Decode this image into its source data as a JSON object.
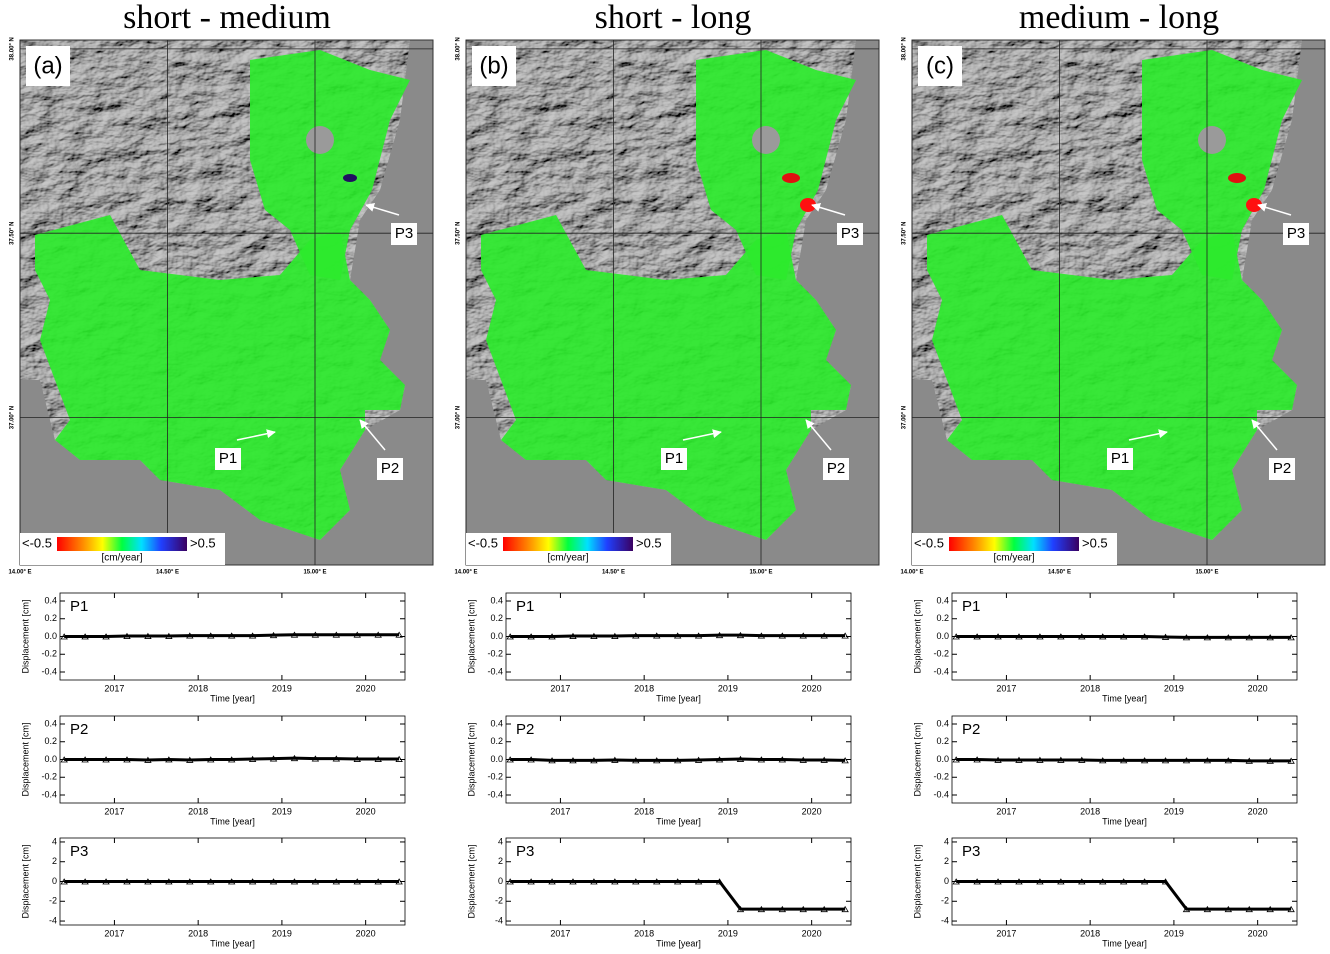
{
  "panels": [
    {
      "title": "short - medium",
      "label": "(a)",
      "colorbar": {
        "min_label": "<-0.5",
        "max_label": ">0.5",
        "unit": "[cm/year]"
      },
      "annotations": [
        "P1",
        "P2",
        "P3"
      ],
      "map": {
        "xlim": [
          14.0,
          15.4
        ],
        "ylim": [
          36.6,
          38.024
        ],
        "xticks": [
          {
            "value": 14.0,
            "label": "14.00° E"
          },
          {
            "value": 14.5,
            "label": "14.50° E"
          },
          {
            "value": 15.0,
            "label": "15.00° E"
          }
        ],
        "yticks": [
          {
            "value": 38.0,
            "label": "38.00° N"
          },
          {
            "value": 37.5,
            "label": "37.50° N"
          },
          {
            "value": 37.0,
            "label": "37.00° N"
          }
        ]
      },
      "charts": [
        {
          "type": "scatter",
          "label": "P1",
          "ylabel": "Displacement [cm]",
          "xlabel": "Time [year]",
          "color": "#000000",
          "x": [
            2016.4,
            2016.65,
            2016.9,
            2017.15,
            2017.4,
            2017.65,
            2017.9,
            2018.15,
            2018.4,
            2018.65,
            2018.9,
            2019.15,
            2019.4,
            2019.65,
            2019.9,
            2020.15,
            2020.4
          ],
          "values": [
            0,
            0,
            0,
            0.005,
            0.005,
            0.005,
            0.01,
            0.01,
            0.01,
            0.01,
            0.015,
            0.02,
            0.02,
            0.02,
            0.02,
            0.02,
            0.02
          ],
          "xlim": [
            2016.35,
            2020.47
          ],
          "ylim": [
            -0.49,
            0.49
          ],
          "xticks": [
            2017,
            2018,
            2019,
            2020
          ],
          "yticks": [
            0.4,
            0.2,
            {
              "value": 0,
              "label": "0.0"
            },
            -0.2,
            -0.4
          ]
        },
        {
          "type": "scatter",
          "label": "P2",
          "ylabel": "Displacement [cm]",
          "xlabel": "Time [year]",
          "color": "#000000",
          "x": [
            2016.4,
            2016.65,
            2016.9,
            2017.15,
            2017.4,
            2017.65,
            2017.9,
            2018.15,
            2018.4,
            2018.65,
            2018.9,
            2019.15,
            2019.4,
            2019.65,
            2019.9,
            2020.15,
            2020.4
          ],
          "values": [
            0,
            0,
            0,
            0,
            -0.005,
            0,
            -0.005,
            0,
            0,
            0.005,
            0.01,
            0.015,
            0.01,
            0.01,
            0.005,
            0.005,
            0.005
          ],
          "xlim": [
            2016.35,
            2020.47
          ],
          "ylim": [
            -0.49,
            0.49
          ],
          "xticks": [
            2017,
            2018,
            2019,
            2020
          ],
          "yticks": [
            0.4,
            0.2,
            {
              "value": 0,
              "label": "0.0"
            },
            -0.2,
            -0.4
          ]
        },
        {
          "type": "scatter",
          "label": "P3",
          "ylabel": "Displacement [cm]",
          "xlabel": "Time [year]",
          "color": "#000000",
          "x": [
            2016.4,
            2016.65,
            2016.9,
            2017.15,
            2017.4,
            2017.65,
            2017.9,
            2018.15,
            2018.4,
            2018.65,
            2018.9,
            2019.15,
            2019.4,
            2019.65,
            2019.9,
            2020.15,
            2020.4
          ],
          "values": [
            0,
            0,
            0,
            0,
            0,
            0,
            0,
            0,
            0,
            0,
            0,
            0,
            0,
            0,
            0,
            0,
            0
          ],
          "xlim": [
            2016.35,
            2020.47
          ],
          "ylim": [
            -4.4,
            4.4
          ],
          "xticks": [
            2017,
            2018,
            2019,
            2020
          ],
          "yticks": [
            4,
            2,
            0,
            -2,
            -4
          ]
        }
      ]
    },
    {
      "title": "short - long",
      "label": "(b)",
      "colorbar": {
        "min_label": "<-0.5",
        "max_label": ">0.5",
        "unit": "[cm/year]"
      },
      "annotations": [
        "P1",
        "P2",
        "P3"
      ],
      "map": {
        "xlim": [
          14.0,
          15.4
        ],
        "ylim": [
          36.6,
          38.024
        ],
        "xticks": [
          {
            "value": 14.0,
            "label": "14.00° E"
          },
          {
            "value": 14.5,
            "label": "14.50° E"
          },
          {
            "value": 15.0,
            "label": "15.00° E"
          }
        ],
        "yticks": [
          {
            "value": 38.0,
            "label": "38.00° N"
          },
          {
            "value": 37.5,
            "label": "37.50° N"
          },
          {
            "value": 37.0,
            "label": "37.00° N"
          }
        ]
      },
      "charts": [
        {
          "type": "scatter",
          "label": "P1",
          "ylabel": "Displacement [cm]",
          "xlabel": "Time [year]",
          "color": "#000000",
          "x": [
            2016.4,
            2016.65,
            2016.9,
            2017.15,
            2017.4,
            2017.65,
            2017.9,
            2018.15,
            2018.4,
            2018.65,
            2018.9,
            2019.15,
            2019.4,
            2019.65,
            2019.9,
            2020.15,
            2020.4
          ],
          "values": [
            0,
            0,
            0,
            0.005,
            0.005,
            0.005,
            0.01,
            0.01,
            0.01,
            0.01,
            0.015,
            0.015,
            0.01,
            0.01,
            0.01,
            0.01,
            0.01
          ],
          "xlim": [
            2016.35,
            2020.47
          ],
          "ylim": [
            -0.49,
            0.49
          ],
          "xticks": [
            2017,
            2018,
            2019,
            2020
          ],
          "yticks": [
            0.4,
            0.2,
            {
              "value": 0,
              "label": "0.0"
            },
            -0.2,
            -0.4
          ]
        },
        {
          "type": "scatter",
          "label": "P2",
          "ylabel": "Displacement [cm]",
          "xlabel": "Time [year]",
          "color": "#000000",
          "x": [
            2016.4,
            2016.65,
            2016.9,
            2017.15,
            2017.4,
            2017.65,
            2017.9,
            2018.15,
            2018.4,
            2018.65,
            2018.9,
            2019.15,
            2019.4,
            2019.65,
            2019.9,
            2020.15,
            2020.4
          ],
          "values": [
            0,
            0,
            -0.01,
            -0.01,
            -0.01,
            -0.005,
            -0.01,
            -0.01,
            -0.01,
            -0.005,
            0,
            0.005,
            0,
            0,
            -0.005,
            -0.005,
            -0.01
          ],
          "xlim": [
            2016.35,
            2020.47
          ],
          "ylim": [
            -0.49,
            0.49
          ],
          "xticks": [
            2017,
            2018,
            2019,
            2020
          ],
          "yticks": [
            0.4,
            0.2,
            {
              "value": 0,
              "label": "0.0"
            },
            -0.2,
            -0.4
          ]
        },
        {
          "type": "scatter",
          "label": "P3",
          "ylabel": "Displacement [cm]",
          "xlabel": "Time [year]",
          "color": "#000000",
          "x": [
            2016.4,
            2016.65,
            2016.9,
            2017.15,
            2017.4,
            2017.65,
            2017.9,
            2018.15,
            2018.4,
            2018.65,
            2018.9,
            2019.15,
            2019.4,
            2019.65,
            2019.9,
            2020.15,
            2020.4
          ],
          "values": [
            0,
            0,
            0,
            0,
            0,
            0,
            0,
            0,
            0,
            0,
            0,
            -2.8,
            -2.8,
            -2.8,
            -2.8,
            -2.8,
            -2.8
          ],
          "xlim": [
            2016.35,
            2020.47
          ],
          "ylim": [
            -4.4,
            4.4
          ],
          "xticks": [
            2017,
            2018,
            2019,
            2020
          ],
          "yticks": [
            4,
            2,
            0,
            -2,
            -4
          ]
        }
      ]
    },
    {
      "title": "medium - long",
      "label": "(c)",
      "colorbar": {
        "min_label": "<-0.5",
        "max_label": ">0.5",
        "unit": "[cm/year]"
      },
      "annotations": [
        "P1",
        "P2",
        "P3"
      ],
      "map": {
        "xlim": [
          14.0,
          15.4
        ],
        "ylim": [
          36.6,
          38.024
        ],
        "xticks": [
          {
            "value": 14.0,
            "label": "14.00° E"
          },
          {
            "value": 14.5,
            "label": "14.50° E"
          },
          {
            "value": 15.0,
            "label": "15.00° E"
          }
        ],
        "yticks": [
          {
            "value": 38.0,
            "label": "38.00° N"
          },
          {
            "value": 37.5,
            "label": "37.50° N"
          },
          {
            "value": 37.0,
            "label": "37.00° N"
          }
        ]
      },
      "charts": [
        {
          "type": "scatter",
          "label": "P1",
          "ylabel": "Displacement [cm]",
          "xlabel": "Time [year]",
          "color": "#000000",
          "x": [
            2016.4,
            2016.65,
            2016.9,
            2017.15,
            2017.4,
            2017.65,
            2017.9,
            2018.15,
            2018.4,
            2018.65,
            2018.9,
            2019.15,
            2019.4,
            2019.65,
            2019.9,
            2020.15,
            2020.4
          ],
          "values": [
            0,
            0,
            0,
            0,
            0,
            0,
            0,
            0,
            0,
            0,
            -0.005,
            -0.01,
            -0.01,
            -0.01,
            -0.01,
            -0.01,
            -0.01
          ],
          "xlim": [
            2016.35,
            2020.47
          ],
          "ylim": [
            -0.49,
            0.49
          ],
          "xticks": [
            2017,
            2018,
            2019,
            2020
          ],
          "yticks": [
            0.4,
            0.2,
            {
              "value": 0,
              "label": "0.0"
            },
            -0.2,
            -0.4
          ]
        },
        {
          "type": "scatter",
          "label": "P2",
          "ylabel": "Displacement [cm]",
          "xlabel": "Time [year]",
          "color": "#000000",
          "x": [
            2016.4,
            2016.65,
            2016.9,
            2017.15,
            2017.4,
            2017.65,
            2017.9,
            2018.15,
            2018.4,
            2018.65,
            2018.9,
            2019.15,
            2019.4,
            2019.65,
            2019.9,
            2020.15,
            2020.4
          ],
          "values": [
            0,
            0,
            -0.005,
            -0.005,
            -0.005,
            -0.005,
            -0.005,
            -0.01,
            -0.01,
            -0.01,
            -0.01,
            -0.01,
            -0.01,
            -0.01,
            -0.015,
            -0.015,
            -0.015
          ],
          "xlim": [
            2016.35,
            2020.47
          ],
          "ylim": [
            -0.49,
            0.49
          ],
          "xticks": [
            2017,
            2018,
            2019,
            2020
          ],
          "yticks": [
            0.4,
            0.2,
            {
              "value": 0,
              "label": "0.0"
            },
            -0.2,
            -0.4
          ]
        },
        {
          "type": "scatter",
          "label": "P3",
          "ylabel": "Displacement [cm]",
          "xlabel": "Time [year]",
          "color": "#000000",
          "x": [
            2016.4,
            2016.65,
            2016.9,
            2017.15,
            2017.4,
            2017.65,
            2017.9,
            2018.15,
            2018.4,
            2018.65,
            2018.9,
            2019.15,
            2019.4,
            2019.65,
            2019.9,
            2020.15,
            2020.4
          ],
          "values": [
            0,
            0,
            0,
            0,
            0,
            0,
            0,
            0,
            0,
            0,
            0,
            -2.8,
            -2.8,
            -2.8,
            -2.8,
            -2.8,
            -2.8
          ],
          "xlim": [
            2016.35,
            2020.47
          ],
          "ylim": [
            -4.4,
            4.4
          ],
          "xticks": [
            2017,
            2018,
            2019,
            2020
          ],
          "yticks": [
            4,
            2,
            0,
            -2,
            -4
          ]
        }
      ]
    }
  ]
}
